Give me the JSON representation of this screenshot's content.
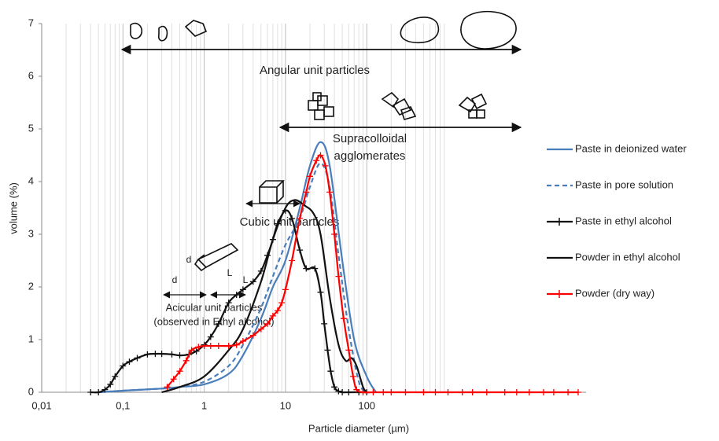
{
  "chart_data": {
    "type": "line",
    "xlabel": "Particle diameter (µm)",
    "ylabel": "volume (%)",
    "xscale": "log",
    "xlim": [
      0.01,
      50000
    ],
    "ylim": [
      0,
      7
    ],
    "xticks": [
      {
        "value": 0.01,
        "label": "0,01"
      },
      {
        "value": 0.1,
        "label": "0,1"
      },
      1,
      10,
      100
    ],
    "yticks": [
      0,
      1,
      2,
      3,
      4,
      5,
      6,
      7
    ],
    "minor_grid": true,
    "legend": "right",
    "annotations": [
      "Angular unit particles",
      "Supracolloidal",
      "agglomerates",
      "Cubic unit particles",
      "Acicular unit particles",
      "(observed in Ethyl alcohol)",
      "d",
      "L",
      "d",
      "L"
    ],
    "series": [
      {
        "name": "Paste in deionized water",
        "color": "#4a7ebb",
        "dash": false,
        "marker": null,
        "x": [
          0.05,
          0.1,
          0.3,
          0.5,
          1,
          2,
          3,
          5,
          7,
          10,
          15,
          20,
          27,
          35,
          50,
          70,
          100,
          130
        ],
        "values": [
          0,
          0.03,
          0.07,
          0.1,
          0.15,
          0.35,
          0.7,
          1.4,
          2,
          2.5,
          3.5,
          4.3,
          4.75,
          4.3,
          2.5,
          1,
          0.3,
          0
        ]
      },
      {
        "name": "Paste in pore solution",
        "color": "#4a7ebb",
        "dash": true,
        "marker": null,
        "x": [
          0.05,
          0.1,
          0.3,
          0.5,
          1,
          2,
          3,
          5,
          7,
          10,
          15,
          20,
          27,
          35,
          45,
          60,
          80,
          100
        ],
        "values": [
          0,
          0.03,
          0.07,
          0.1,
          0.2,
          0.5,
          0.9,
          1.6,
          2.2,
          2.8,
          3.3,
          3.9,
          4.35,
          3.9,
          2.6,
          1.2,
          0.2,
          0
        ]
      },
      {
        "name": "Paste in ethyl alcohol",
        "color": "#111111",
        "dash": false,
        "marker": "+",
        "x": [
          0.04,
          0.05,
          0.06,
          0.07,
          0.08,
          0.1,
          0.12,
          0.15,
          0.2,
          0.25,
          0.3,
          0.4,
          0.5,
          0.65,
          0.8,
          1,
          1.2,
          1.5,
          2,
          2.5,
          3,
          4,
          5,
          6,
          7,
          8,
          10,
          12,
          15,
          18,
          23,
          27,
          30,
          33,
          36,
          40,
          45,
          50,
          60,
          80,
          100
        ],
        "values": [
          0,
          0,
          0.05,
          0.15,
          0.3,
          0.5,
          0.58,
          0.65,
          0.72,
          0.73,
          0.73,
          0.72,
          0.7,
          0.72,
          0.78,
          0.9,
          1.05,
          1.3,
          1.7,
          1.85,
          1.95,
          2.1,
          2.3,
          2.6,
          2.9,
          3.2,
          3.45,
          3.3,
          2.7,
          2.35,
          2.35,
          1.9,
          1.3,
          0.8,
          0.4,
          0.1,
          0.02,
          0,
          0,
          0,
          0
        ]
      },
      {
        "name": "Powder in ethyl alcohol",
        "color": "#111111",
        "dash": false,
        "marker": null,
        "x": [
          0.3,
          0.5,
          1,
          2,
          3,
          5,
          7,
          10,
          13,
          17,
          22,
          27,
          35,
          45,
          55,
          65,
          75,
          90,
          100
        ],
        "values": [
          0,
          0.1,
          0.3,
          0.8,
          1.2,
          2.1,
          2.9,
          3.5,
          3.65,
          3.55,
          3.4,
          3,
          1.8,
          0.9,
          0.6,
          0.65,
          0.5,
          0.1,
          0
        ]
      },
      {
        "name": "Powder (dry way)",
        "color": "#ff0000",
        "dash": false,
        "marker": "+",
        "x": [
          0.35,
          0.42,
          0.5,
          0.6,
          0.7,
          0.85,
          1,
          1.2,
          1.5,
          2,
          2.5,
          3,
          4,
          5,
          6,
          7,
          8,
          9,
          10,
          12,
          15,
          18,
          20,
          24,
          27,
          31,
          35,
          40,
          45,
          52,
          60,
          68,
          75,
          90,
          120,
          160,
          200,
          300,
          500,
          700,
          1000,
          1500,
          2000,
          3000,
          5000,
          7000,
          10000,
          15000,
          20000,
          30000,
          40000
        ],
        "values": [
          0.1,
          0.25,
          0.4,
          0.6,
          0.8,
          0.86,
          0.88,
          0.88,
          0.88,
          0.88,
          0.9,
          0.97,
          1.08,
          1.2,
          1.3,
          1.45,
          1.55,
          1.7,
          1.95,
          2.5,
          3.3,
          3.8,
          4.1,
          4.4,
          4.5,
          4.3,
          3.8,
          3,
          2.2,
          1.4,
          0.8,
          0.3,
          0.05,
          0,
          0,
          0,
          0,
          0,
          0,
          0,
          0,
          0,
          0,
          0,
          0,
          0,
          0,
          0,
          0,
          0,
          0
        ]
      }
    ]
  }
}
